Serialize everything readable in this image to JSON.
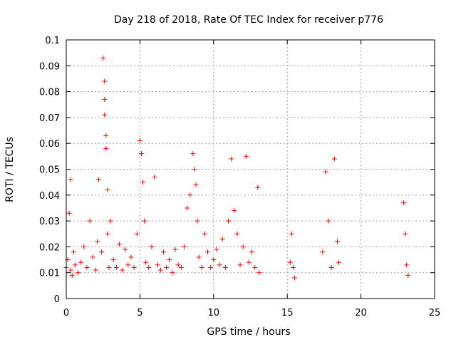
{
  "chart_data": {
    "type": "scatter",
    "title": "Day 218 of 2018, Rate Of TEC Index for receiver p776",
    "xlabel": "GPS time / hours",
    "ylabel": "ROTI / TECUs",
    "xlim": [
      0,
      25
    ],
    "ylim": [
      0,
      0.1
    ],
    "xticks": [
      "0",
      "5",
      "10",
      "15",
      "20",
      "25"
    ],
    "yticks": [
      "0",
      "0.01",
      "0.02",
      "0.03",
      "0.04",
      "0.05",
      "0.06",
      "0.07",
      "0.08",
      "0.09",
      "0.1"
    ],
    "grid": true,
    "marker": "+",
    "color": "#ff0000",
    "series": [
      {
        "x": [
          0.0,
          0.1,
          0.2,
          0.3,
          0.3,
          0.4,
          0.5,
          0.6,
          0.8,
          1.0,
          1.2,
          1.4,
          1.6,
          1.8,
          2.0,
          2.1,
          2.2,
          2.4,
          2.5,
          2.6,
          2.6,
          2.6,
          2.7,
          2.7,
          2.8,
          2.8,
          2.9,
          3.0,
          3.2,
          3.4,
          3.6,
          3.8,
          4.0,
          4.2,
          4.4,
          4.6,
          4.8,
          5.0,
          5.1,
          5.2,
          5.3,
          5.4,
          5.6,
          5.8,
          6.0,
          6.2,
          6.4,
          6.6,
          6.8,
          7.0,
          7.2,
          7.4,
          7.6,
          7.8,
          8.0,
          8.2,
          8.4,
          8.6,
          8.7,
          8.8,
          8.9,
          9.0,
          9.2,
          9.4,
          9.6,
          9.8,
          10.0,
          10.2,
          10.4,
          10.6,
          10.8,
          11.0,
          11.2,
          11.4,
          11.6,
          11.8,
          12.0,
          12.2,
          12.4,
          12.6,
          12.8,
          13.0,
          13.1,
          15.2,
          15.3,
          15.4,
          15.5,
          17.4,
          17.6,
          17.8,
          18.0,
          18.2,
          18.4,
          18.5,
          22.9,
          23.0,
          23.1,
          23.2
        ],
        "y": [
          0.012,
          0.015,
          0.033,
          0.046,
          0.011,
          0.009,
          0.018,
          0.013,
          0.01,
          0.014,
          0.02,
          0.012,
          0.03,
          0.016,
          0.011,
          0.022,
          0.046,
          0.018,
          0.093,
          0.084,
          0.077,
          0.071,
          0.063,
          0.058,
          0.042,
          0.025,
          0.012,
          0.03,
          0.015,
          0.012,
          0.021,
          0.011,
          0.019,
          0.013,
          0.016,
          0.012,
          0.025,
          0.061,
          0.056,
          0.045,
          0.03,
          0.014,
          0.012,
          0.02,
          0.047,
          0.013,
          0.011,
          0.018,
          0.012,
          0.015,
          0.01,
          0.019,
          0.013,
          0.012,
          0.02,
          0.035,
          0.04,
          0.056,
          0.05,
          0.044,
          0.03,
          0.016,
          0.012,
          0.025,
          0.018,
          0.012,
          0.015,
          0.019,
          0.013,
          0.023,
          0.012,
          0.03,
          0.054,
          0.034,
          0.025,
          0.013,
          0.02,
          0.055,
          0.014,
          0.018,
          0.012,
          0.043,
          0.01,
          0.014,
          0.025,
          0.012,
          0.008,
          0.018,
          0.049,
          0.03,
          0.012,
          0.054,
          0.022,
          0.014,
          0.037,
          0.025,
          0.013,
          0.009
        ]
      }
    ]
  }
}
